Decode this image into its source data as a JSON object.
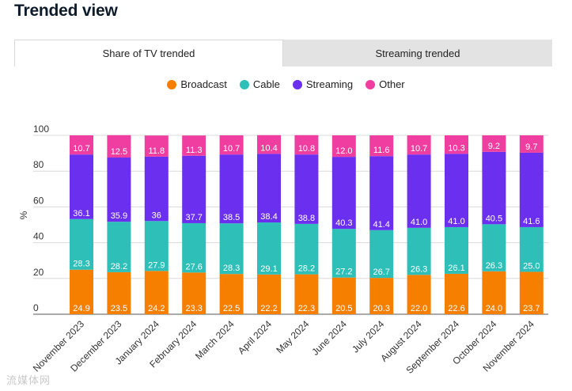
{
  "page": {
    "title": "Trended view"
  },
  "tabs": [
    {
      "label": "Share of TV trended",
      "active": true
    },
    {
      "label": "Streaming trended",
      "active": false
    }
  ],
  "watermark": "流媒体网",
  "colors": {
    "Broadcast": "#f77f00",
    "Cable": "#2dbfb8",
    "Streaming": "#6b2ff0",
    "Other": "#f03ea0"
  },
  "chart_data": {
    "type": "bar",
    "stacked": true,
    "title": "",
    "xlabel": "",
    "ylabel": "%",
    "ylim": [
      0,
      100
    ],
    "yticks": [
      0,
      20,
      40,
      60,
      80,
      100
    ],
    "grid": true,
    "legend_position": "top-center",
    "categories": [
      "November 2023",
      "December 2023",
      "January 2024",
      "February 2024",
      "March 2024",
      "April 2024",
      "May 2024",
      "June 2024",
      "July 2024",
      "August 2024",
      "September 2024",
      "October 2024",
      "November 2024"
    ],
    "series": [
      {
        "name": "Broadcast",
        "color": "#f77f00",
        "values": [
          24.9,
          23.5,
          24.2,
          23.3,
          22.5,
          22.2,
          22.3,
          20.5,
          20.3,
          22.0,
          22.6,
          24.0,
          23.7
        ],
        "labels": [
          "24.9",
          "23.5",
          "24.2",
          "23.3",
          "22.5",
          "22.2",
          "22.3",
          "20.5",
          "20.3",
          "22.0",
          "22.6",
          "24.0",
          "23.7"
        ]
      },
      {
        "name": "Cable",
        "color": "#2dbfb8",
        "values": [
          28.3,
          28.2,
          27.9,
          27.6,
          28.3,
          29.1,
          28.2,
          27.2,
          26.7,
          26.3,
          26.1,
          26.3,
          25.0
        ],
        "labels": [
          "28.3",
          "28.2",
          "27.9",
          "27.6",
          "28.3",
          "29.1",
          "28.2",
          "27.2",
          "26.7",
          "26.3",
          "26.1",
          "26.3",
          "25.0"
        ]
      },
      {
        "name": "Streaming",
        "color": "#6b2ff0",
        "values": [
          36.1,
          35.9,
          36,
          37.7,
          38.5,
          38.4,
          38.8,
          40.3,
          41.4,
          41.0,
          41.0,
          40.5,
          41.6
        ],
        "labels": [
          "36.1",
          "35.9",
          "36",
          "37.7",
          "38.5",
          "38.4",
          "38.8",
          "40.3",
          "41.4",
          "41.0",
          "41.0",
          "40.5",
          "41.6"
        ]
      },
      {
        "name": "Other",
        "color": "#f03ea0",
        "values": [
          10.7,
          12.5,
          11.8,
          11.3,
          10.7,
          10.4,
          10.8,
          12.0,
          11.6,
          10.7,
          10.3,
          9.2,
          9.7
        ],
        "labels": [
          "10.7",
          "12.5",
          "11.8",
          "11.3",
          "10.7",
          "10.4",
          "10.8",
          "12.0",
          "11.6",
          "10.7",
          "10.3",
          "9.2",
          "9.7"
        ]
      }
    ]
  }
}
